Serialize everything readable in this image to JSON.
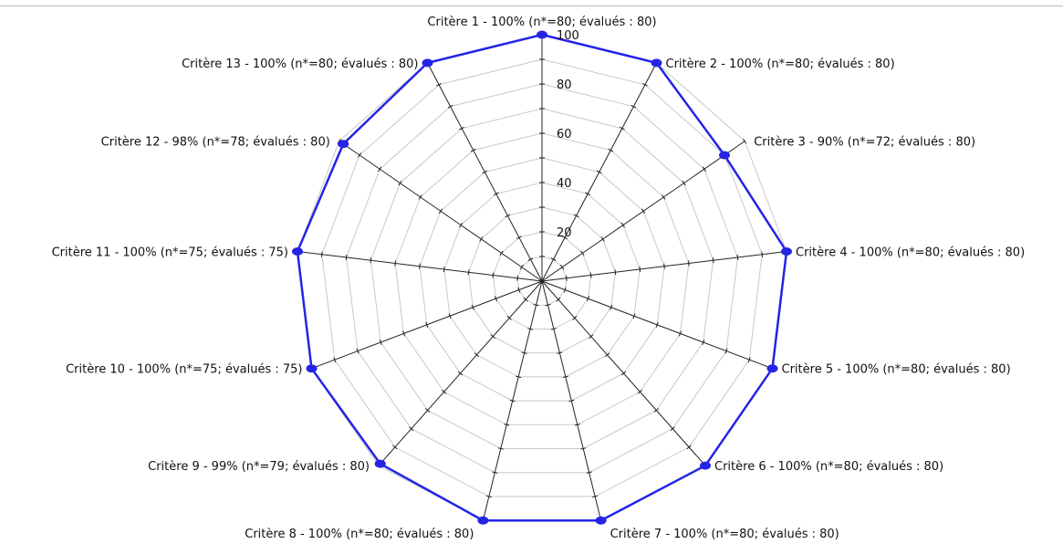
{
  "chart_data": {
    "type": "radar",
    "title": "",
    "categories": [
      "Critère 1 - 100% (n*=80; évalués : 80)",
      "Critère 2 - 100% (n*=80; évalués : 80)",
      "Critère 3 - 90% (n*=72; évalués : 80)",
      "Critère 4 - 100% (n*=80; évalués : 80)",
      "Critère 5 - 100% (n*=80; évalués : 80)",
      "Critère 6 - 100% (n*=80; évalués : 80)",
      "Critère 7 - 100% (n*=80; évalués : 80)",
      "Critère 8 - 100% (n*=80; évalués : 80)",
      "Critère 9 - 99% (n*=79; évalués : 80)",
      "Critère 10 - 100% (n*=75; évalués : 75)",
      "Critère 11 - 100% (n*=75; évalués : 75)",
      "Critère 12 - 98% (n*=78; évalués : 80)",
      "Critère 13 - 100% (n*=80; évalués : 80)"
    ],
    "series": [
      {
        "values": [
          100,
          100,
          90,
          100,
          100,
          100,
          100,
          100,
          99,
          100,
          100,
          98,
          100
        ],
        "color": "#2424e6"
      }
    ],
    "radial_ticks": [
      "20",
      "40",
      "60",
      "80",
      "100"
    ],
    "rmax": 100,
    "grid": true,
    "grid_color": "#c8c8c8",
    "axis_color": "#222222",
    "legend": "none"
  }
}
